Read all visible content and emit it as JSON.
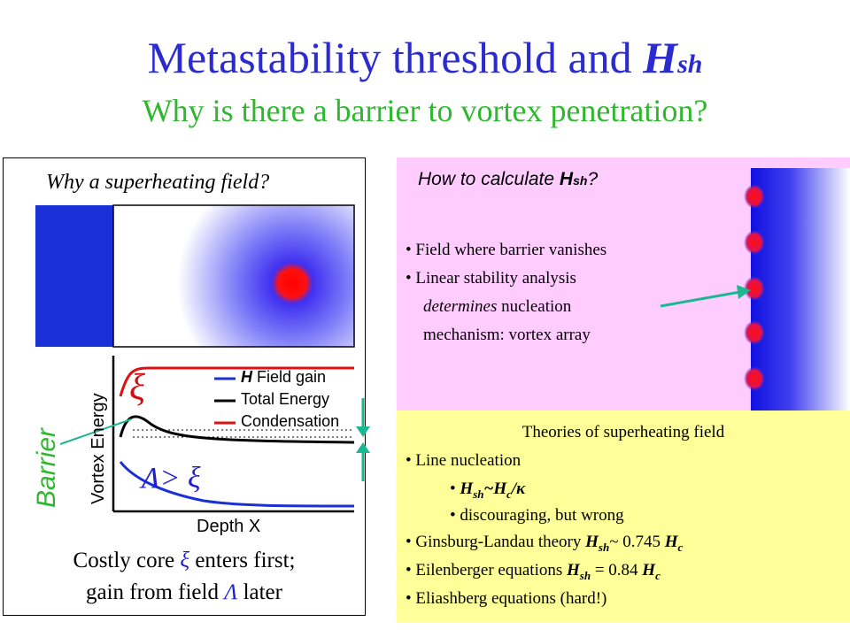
{
  "title": {
    "main": "Metastability threshold and ",
    "var": "H",
    "sub": "sh"
  },
  "subtitle": "Why is there a barrier to vortex penetration?",
  "left": {
    "heading": "Why a superheating field?",
    "barrier_label": "Barrier",
    "plot": {
      "ylabel": "Vortex Energy",
      "xlabel": "Depth X",
      "xi_symbol": "ξ",
      "lambda_label": "Λ> ξ",
      "legend": [
        {
          "var": "H",
          "text": " Field gain",
          "color": "#1a2fd6"
        },
        {
          "var": "",
          "text": "Total Energy",
          "color": "#000000"
        },
        {
          "var": "",
          "text": "Condensation",
          "color": "#e01010"
        }
      ]
    },
    "caption_line1": {
      "pre": "Costly core ",
      "sym": "ξ",
      "post": " enters first;"
    },
    "caption_line2": {
      "pre": "gain from field ",
      "sym": "Λ",
      "post": " later"
    }
  },
  "right_top": {
    "heading": {
      "pre": "How to calculate ",
      "var": "H",
      "sub": "sh",
      "post": "?"
    },
    "bullets": {
      "b1": "• Field where barrier vanishes",
      "b2": "• Linear stability analysis",
      "b2a_italic": "determines",
      "b2a_rest": " nucleation",
      "b2b": "mechanism: vortex array"
    }
  },
  "right_bottom": {
    "heading": "Theories of superheating field",
    "t1": "• Line nucleation",
    "t1a": {
      "bullet": "• ",
      "h": "H",
      "sh": "sh",
      "tilde": "~",
      "h2": "H",
      "c": "c",
      "rest": "/κ"
    },
    "t1b": "•  discouraging, but wrong",
    "t2": {
      "pre": "• Ginsburg-Landau theory ",
      "h": "H",
      "sh": "sh",
      "mid": "~ 0.745 ",
      "h2": "H",
      "c": "c"
    },
    "t3": {
      "pre": "• Eilenberger equations ",
      "h": "H",
      "sh": "sh",
      "mid": " = 0.84 ",
      "h2": "H",
      "c": "c"
    },
    "t4": "• Eliashberg equations (hard!)"
  },
  "colors": {
    "title": "#2b2bd0",
    "subtitle": "#2fb82f",
    "pink_panel": "#ffccff",
    "yellow_panel": "#ffff99",
    "vortex_core": "#ff1a1a",
    "superconductor_blue": "#1a2fd6",
    "arrow_teal": "#1ab890"
  }
}
